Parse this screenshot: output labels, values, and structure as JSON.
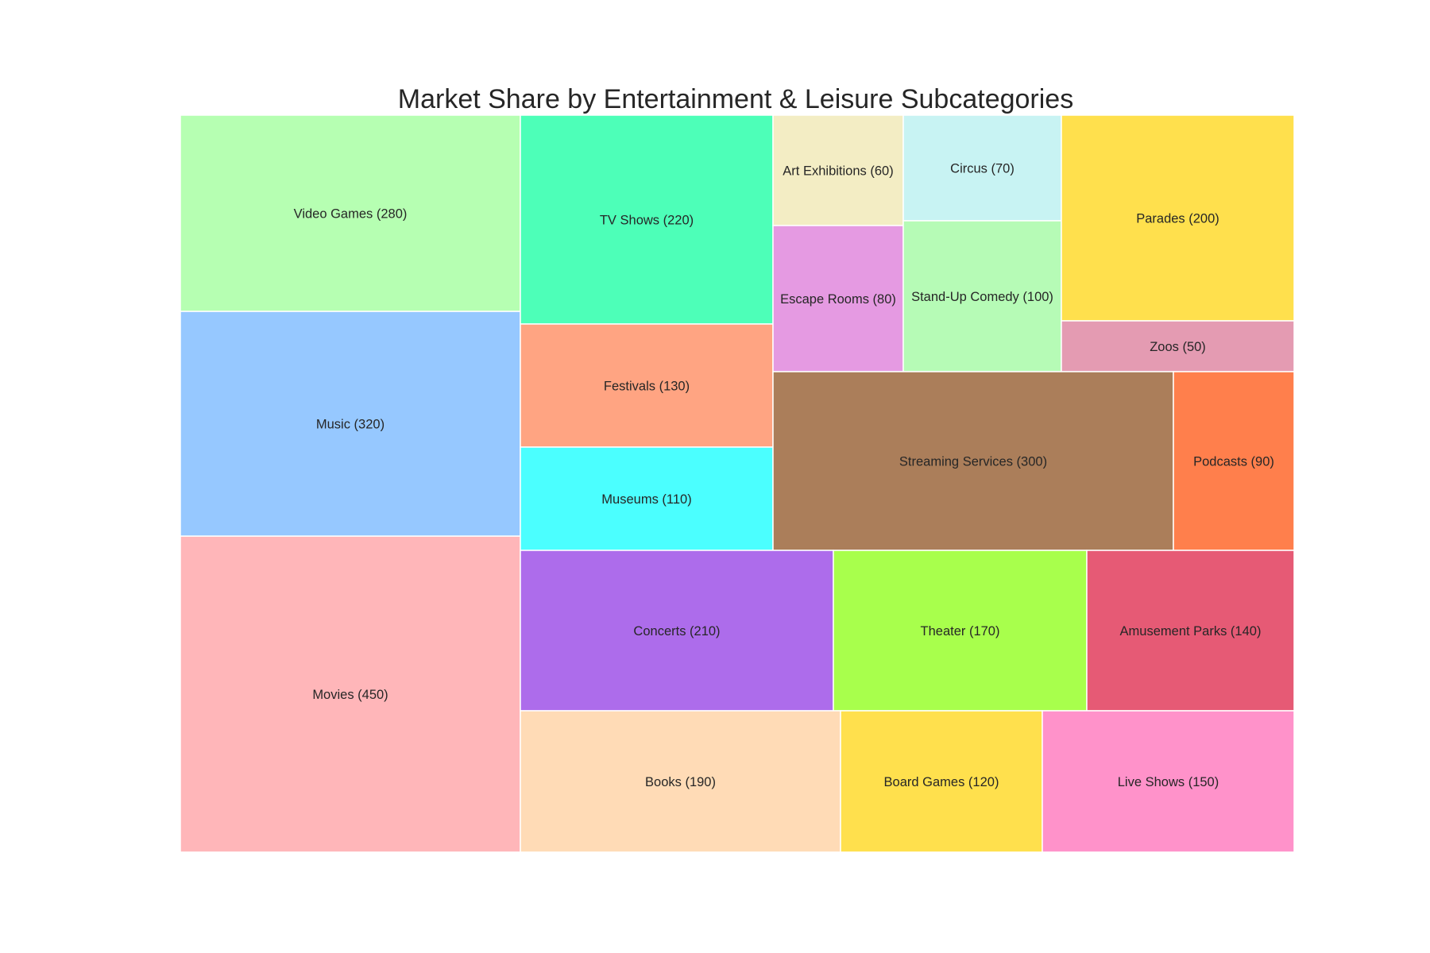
{
  "chart_data": {
    "type": "treemap",
    "title": "Market Share by Entertainment & Leisure Subcategories",
    "items": [
      {
        "label": "Movies (450)",
        "name": "Movies",
        "value": 450,
        "color": "#FFB6B9"
      },
      {
        "label": "Music (320)",
        "name": "Music",
        "value": 320,
        "color": "#96C8FF"
      },
      {
        "label": "Video Games (280)",
        "name": "Video Games",
        "value": 280,
        "color": "#B6FFB2"
      },
      {
        "label": "TV Shows (220)",
        "name": "TV Shows",
        "value": 220,
        "color": "#4DFFB8"
      },
      {
        "label": "Festivals (130)",
        "name": "Festivals",
        "value": 130,
        "color": "#FFA482"
      },
      {
        "label": "Museums (110)",
        "name": "Museums",
        "value": 110,
        "color": "#4BFFFF"
      },
      {
        "label": "Art Exhibitions (60)",
        "name": "Art Exhibitions",
        "value": 60,
        "color": "#F3EDC4"
      },
      {
        "label": "Escape Rooms (80)",
        "name": "Escape Rooms",
        "value": 80,
        "color": "#E59AE2"
      },
      {
        "label": "Circus (70)",
        "name": "Circus",
        "value": 70,
        "color": "#C8F3F3"
      },
      {
        "label": "Stand-Up Comedy (100)",
        "name": "Stand-Up Comedy",
        "value": 100,
        "color": "#B6FBB6"
      },
      {
        "label": "Parades (200)",
        "name": "Parades",
        "value": 200,
        "color": "#FFE04D"
      },
      {
        "label": "Zoos (50)",
        "name": "Zoos",
        "value": 50,
        "color": "#E49BB2"
      },
      {
        "label": "Streaming Services (300)",
        "name": "Streaming Services",
        "value": 300,
        "color": "#AB7E5A"
      },
      {
        "label": "Podcasts (90)",
        "name": "Podcasts",
        "value": 90,
        "color": "#FF7F4C"
      },
      {
        "label": "Concerts (210)",
        "name": "Concerts",
        "value": 210,
        "color": "#AD6CEB"
      },
      {
        "label": "Theater (170)",
        "name": "Theater",
        "value": 170,
        "color": "#A8FF4C"
      },
      {
        "label": "Amusement Parks (140)",
        "name": "Amusement Parks",
        "value": 140,
        "color": "#E65A75"
      },
      {
        "label": "Books (190)",
        "name": "Books",
        "value": 190,
        "color": "#FFDBB6"
      },
      {
        "label": "Board Games (120)",
        "name": "Board Games",
        "value": 120,
        "color": "#FFE04D"
      },
      {
        "label": "Live Shows (150)",
        "name": "Live Shows",
        "value": 150,
        "color": "#FF92CA"
      }
    ]
  }
}
